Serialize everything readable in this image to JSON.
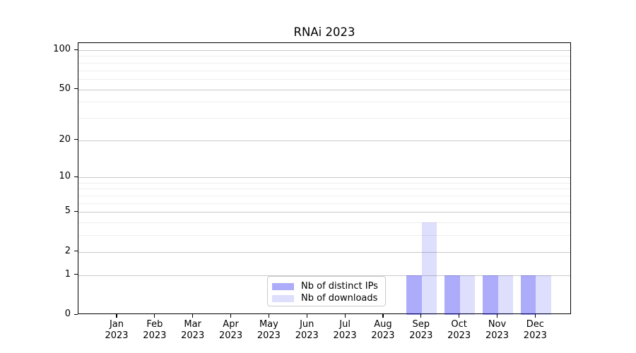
{
  "chart_data": {
    "type": "bar",
    "title": "RNAi 2023",
    "categories": [
      "Jan 2023",
      "Feb 2023",
      "Mar 2023",
      "Apr 2023",
      "May 2023",
      "Jun 2023",
      "Jul 2023",
      "Aug 2023",
      "Sep 2023",
      "Oct 2023",
      "Nov 2023",
      "Dec 2023"
    ],
    "x_tick_line1": [
      "Jan",
      "Feb",
      "Mar",
      "Apr",
      "May",
      "Jun",
      "Jul",
      "Aug",
      "Sep",
      "Oct",
      "Nov",
      "Dec"
    ],
    "x_tick_line2": [
      "2023",
      "2023",
      "2023",
      "2023",
      "2023",
      "2023",
      "2023",
      "2023",
      "2023",
      "2023",
      "2023",
      "2023"
    ],
    "series": [
      {
        "name": "Nb of distinct IPs",
        "color": "rgba(18,18,240,0.35)",
        "values": [
          0,
          0,
          0,
          0,
          0,
          0,
          0,
          0,
          1,
          1,
          1,
          1
        ]
      },
      {
        "name": "Nb of downloads",
        "color": "rgba(18,18,240,0.14)",
        "values": [
          0,
          0,
          0,
          0,
          0,
          0,
          0,
          0,
          4,
          1,
          1,
          1
        ]
      }
    ],
    "y_axis": {
      "scale": "log(1+x)",
      "major_ticks": [
        0,
        1,
        2,
        5,
        10,
        20,
        50,
        100
      ],
      "major_tick_labels": [
        "0",
        "1",
        "2",
        "5",
        "10",
        "20",
        "50",
        "100"
      ],
      "minor_gridline_values": [
        3,
        4,
        6,
        7,
        8,
        9,
        30,
        40,
        60,
        70,
        80,
        90
      ],
      "ylim": [
        0,
        130
      ]
    },
    "grid": "horizontal major and minor gridlines",
    "legend": {
      "entries": [
        "Nb of distinct IPs",
        "Nb of downloads"
      ],
      "position": "inside lower-center"
    }
  },
  "colors": {
    "bar_distinct_ips": "rgba(18,18,240,0.35)",
    "bar_downloads": "rgba(18,18,240,0.14)",
    "major_gridline": "#c9c9c9",
    "minor_gridline": "#efefef",
    "axis": "#000000",
    "background": "#ffffff",
    "legend_border": "#cbcbcb"
  }
}
